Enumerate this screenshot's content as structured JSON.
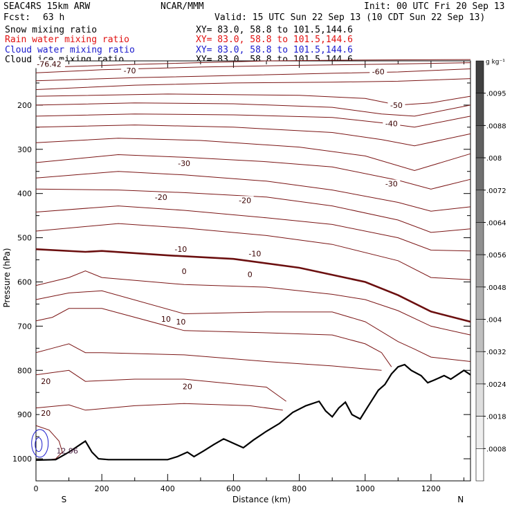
{
  "header": {
    "model": "SEAC4RS 15km ARW",
    "org": "NCAR/MMM",
    "init": "Init: 00 UTC Fri 20 Sep 13",
    "fcst_label": "Fcst:",
    "fcst_value": "63 h",
    "valid": "Valid: 15 UTC Sun 22 Sep 13 (10 CDT Sun 22 Sep 13)"
  },
  "fields": [
    {
      "name": "Snow mixing ratio",
      "xy": "XY=  83.0, 58.8 to 101.5,144.6",
      "color": "#000000"
    },
    {
      "name": "Rain water mixing ratio",
      "xy": "XY=  83.0, 58.8 to 101.5,144.6",
      "color": "#e01010"
    },
    {
      "name": "Cloud water mixing ratio",
      "xy": "XY=  83.0, 58.8 to 101.5,144.6",
      "color": "#1a1acc"
    },
    {
      "name": "Cloud ice mixing ratio",
      "xy": "XY=  83.0, 58.8 to 101.5,144.6",
      "color": "#000000"
    }
  ],
  "chart_data": {
    "type": "cross-section",
    "xlabel": "Distance (km)",
    "ylabel": "Pressure (hPa)",
    "xlim": [
      0,
      1320
    ],
    "ylim": [
      1050,
      100
    ],
    "x_ticks": [
      0,
      200,
      400,
      600,
      800,
      1000,
      1200
    ],
    "y_ticks": [
      200,
      300,
      400,
      500,
      600,
      700,
      800,
      900,
      1000
    ],
    "endpoint_left": "S",
    "endpoint_right": "N",
    "colorbar_unit": "g kg⁻¹",
    "colorbar_ticks": [
      ".0095",
      ".0088",
      ".008",
      ".0072",
      ".0064",
      ".0056",
      ".0048",
      ".004",
      ".0032",
      ".0024",
      ".0018",
      ".0008"
    ],
    "temperature_labels": [
      {
        "text": "-76.42",
        "x": 40,
        "p": 107
      },
      {
        "text": "-70",
        "x": 285,
        "p": 122
      },
      {
        "text": "-60",
        "x": 1040,
        "p": 124
      },
      {
        "text": "-50",
        "x": 1095,
        "p": 200
      },
      {
        "text": "-40",
        "x": 1080,
        "p": 242
      },
      {
        "text": "-30",
        "x": 450,
        "p": 332
      },
      {
        "text": "-30",
        "x": 1080,
        "p": 378
      },
      {
        "text": "-20",
        "x": 380,
        "p": 408
      },
      {
        "text": "-20",
        "x": 635,
        "p": 415
      },
      {
        "text": "-10",
        "x": 440,
        "p": 526
      },
      {
        "text": "-10",
        "x": 665,
        "p": 536
      },
      {
        "text": "0",
        "x": 450,
        "p": 576
      },
      {
        "text": "0",
        "x": 650,
        "p": 583
      },
      {
        "text": "10",
        "x": 395,
        "p": 684
      },
      {
        "text": "10",
        "x": 440,
        "p": 690
      },
      {
        "text": "20",
        "x": 30,
        "p": 825
      },
      {
        "text": "20",
        "x": 460,
        "p": 836
      },
      {
        "text": "20",
        "x": 30,
        "p": 897
      }
    ],
    "cloud_water_max_label": "12.96",
    "terrain": [
      [
        0,
        1003
      ],
      [
        60,
        1002
      ],
      [
        100,
        985
      ],
      [
        140,
        965
      ],
      [
        150,
        960
      ],
      [
        170,
        985
      ],
      [
        190,
        1000
      ],
      [
        220,
        1002
      ],
      [
        400,
        1002
      ],
      [
        430,
        995
      ],
      [
        460,
        985
      ],
      [
        480,
        995
      ],
      [
        510,
        982
      ],
      [
        540,
        968
      ],
      [
        570,
        955
      ],
      [
        600,
        965
      ],
      [
        630,
        975
      ],
      [
        660,
        958
      ],
      [
        700,
        938
      ],
      [
        740,
        920
      ],
      [
        780,
        895
      ],
      [
        820,
        880
      ],
      [
        860,
        870
      ],
      [
        880,
        892
      ],
      [
        900,
        905
      ],
      [
        920,
        885
      ],
      [
        940,
        872
      ],
      [
        960,
        900
      ],
      [
        985,
        910
      ],
      [
        1010,
        880
      ],
      [
        1040,
        845
      ],
      [
        1060,
        832
      ],
      [
        1080,
        808
      ],
      [
        1100,
        792
      ],
      [
        1120,
        787
      ],
      [
        1140,
        800
      ],
      [
        1170,
        812
      ],
      [
        1190,
        828
      ],
      [
        1210,
        822
      ],
      [
        1240,
        812
      ],
      [
        1260,
        820
      ],
      [
        1280,
        810
      ],
      [
        1300,
        800
      ],
      [
        1320,
        810
      ]
    ],
    "isotherms": [
      {
        "value": -70,
        "points": [
          [
            0,
            115
          ],
          [
            300,
            108
          ],
          [
            700,
            100
          ],
          [
            1000,
            98
          ],
          [
            1320,
            97
          ]
        ]
      },
      {
        "value": -65,
        "points": [
          [
            0,
            127
          ],
          [
            200,
            120
          ],
          [
            500,
            114
          ],
          [
            800,
            110
          ],
          [
            1100,
            107
          ],
          [
            1320,
            104
          ]
        ]
      },
      {
        "value": -60,
        "points": [
          [
            0,
            145
          ],
          [
            300,
            138
          ],
          [
            600,
            133
          ],
          [
            900,
            128
          ],
          [
            1100,
            125
          ],
          [
            1320,
            118
          ]
        ]
      },
      {
        "value": -55,
        "points": [
          [
            0,
            165
          ],
          [
            300,
            155
          ],
          [
            600,
            150
          ],
          [
            900,
            148
          ],
          [
            1100,
            146
          ],
          [
            1320,
            140
          ]
        ]
      },
      {
        "value": -50,
        "points": [
          [
            0,
            180
          ],
          [
            400,
            175
          ],
          [
            800,
            178
          ],
          [
            1000,
            185
          ],
          [
            1100,
            200
          ],
          [
            1200,
            195
          ],
          [
            1320,
            180
          ]
        ]
      },
      {
        "value": -45,
        "points": [
          [
            0,
            200
          ],
          [
            300,
            195
          ],
          [
            600,
            197
          ],
          [
            900,
            205
          ],
          [
            1050,
            220
          ],
          [
            1150,
            225
          ],
          [
            1320,
            200
          ]
        ]
      },
      {
        "value": -40,
        "points": [
          [
            0,
            225
          ],
          [
            300,
            220
          ],
          [
            600,
            222
          ],
          [
            900,
            228
          ],
          [
            1050,
            240
          ],
          [
            1150,
            250
          ],
          [
            1320,
            225
          ]
        ]
      },
      {
        "value": -35,
        "points": [
          [
            0,
            250
          ],
          [
            300,
            245
          ],
          [
            600,
            250
          ],
          [
            900,
            262
          ],
          [
            1050,
            278
          ],
          [
            1150,
            292
          ],
          [
            1320,
            265
          ]
        ]
      },
      {
        "value": -30,
        "points": [
          [
            0,
            285
          ],
          [
            250,
            275
          ],
          [
            500,
            280
          ],
          [
            800,
            295
          ],
          [
            1000,
            315
          ],
          [
            1150,
            348
          ],
          [
            1320,
            310
          ]
        ]
      },
      {
        "value": -25,
        "points": [
          [
            0,
            330
          ],
          [
            250,
            312
          ],
          [
            450,
            318
          ],
          [
            700,
            328
          ],
          [
            900,
            340
          ],
          [
            1100,
            370
          ],
          [
            1200,
            390
          ],
          [
            1320,
            368
          ]
        ]
      },
      {
        "value": -20,
        "points": [
          [
            0,
            365
          ],
          [
            250,
            350
          ],
          [
            450,
            358
          ],
          [
            700,
            372
          ],
          [
            900,
            392
          ],
          [
            1100,
            420
          ],
          [
            1200,
            440
          ],
          [
            1320,
            430
          ]
        ]
      },
      {
        "value": -15,
        "points": [
          [
            0,
            390
          ],
          [
            250,
            392
          ],
          [
            450,
            398
          ],
          [
            700,
            408
          ],
          [
            900,
            428
          ],
          [
            1100,
            460
          ],
          [
            1200,
            488
          ],
          [
            1320,
            480
          ]
        ]
      },
      {
        "value": -10,
        "points": [
          [
            0,
            442
          ],
          [
            250,
            428
          ],
          [
            450,
            438
          ],
          [
            700,
            455
          ],
          [
            900,
            470
          ],
          [
            1100,
            500
          ],
          [
            1200,
            528
          ],
          [
            1320,
            530
          ]
        ]
      },
      {
        "value": -5,
        "points": [
          [
            0,
            485
          ],
          [
            250,
            468
          ],
          [
            450,
            478
          ],
          [
            700,
            495
          ],
          [
            900,
            515
          ],
          [
            1100,
            552
          ],
          [
            1200,
            590
          ],
          [
            1320,
            595
          ]
        ]
      },
      {
        "value": 5,
        "points": [
          [
            0,
            608
          ],
          [
            100,
            590
          ],
          [
            150,
            575
          ],
          [
            200,
            590
          ],
          [
            450,
            606
          ],
          [
            700,
            612
          ],
          [
            900,
            628
          ],
          [
            1000,
            640
          ],
          [
            1100,
            665
          ],
          [
            1200,
            700
          ],
          [
            1320,
            720
          ]
        ]
      },
      {
        "value": 10,
        "points": [
          [
            0,
            640
          ],
          [
            100,
            625
          ],
          [
            200,
            620
          ],
          [
            450,
            672
          ],
          [
            700,
            668
          ],
          [
            900,
            668
          ],
          [
            1000,
            690
          ],
          [
            1100,
            735
          ],
          [
            1150,
            752
          ],
          [
            1200,
            770
          ],
          [
            1320,
            780
          ]
        ]
      },
      {
        "value": 15,
        "points": [
          [
            0,
            688
          ],
          [
            50,
            680
          ],
          [
            100,
            660
          ],
          [
            200,
            660
          ],
          [
            450,
            710
          ],
          [
            700,
            715
          ],
          [
            900,
            720
          ],
          [
            1000,
            740
          ],
          [
            1050,
            760
          ],
          [
            1080,
            792
          ]
        ]
      },
      {
        "value": 20,
        "points": [
          [
            0,
            760
          ],
          [
            50,
            750
          ],
          [
            100,
            740
          ],
          [
            150,
            760
          ],
          [
            200,
            760
          ],
          [
            450,
            765
          ],
          [
            700,
            780
          ],
          [
            900,
            790
          ],
          [
            1050,
            800
          ]
        ]
      },
      {
        "value": 25,
        "points": [
          [
            0,
            810
          ],
          [
            100,
            800
          ],
          [
            150,
            825
          ],
          [
            300,
            820
          ],
          [
            450,
            820
          ],
          [
            700,
            838
          ],
          [
            760,
            870
          ]
        ]
      },
      {
        "value": 30,
        "points": [
          [
            0,
            885
          ],
          [
            100,
            878
          ],
          [
            150,
            890
          ],
          [
            300,
            880
          ],
          [
            450,
            875
          ],
          [
            650,
            880
          ],
          [
            750,
            890
          ]
        ]
      }
    ],
    "freezing_level": [
      [
        0,
        526
      ],
      [
        150,
        532
      ],
      [
        200,
        530
      ],
      [
        400,
        540
      ],
      [
        600,
        548
      ],
      [
        800,
        568
      ],
      [
        1000,
        600
      ],
      [
        1100,
        630
      ],
      [
        1200,
        667
      ],
      [
        1320,
        690
      ]
    ]
  }
}
